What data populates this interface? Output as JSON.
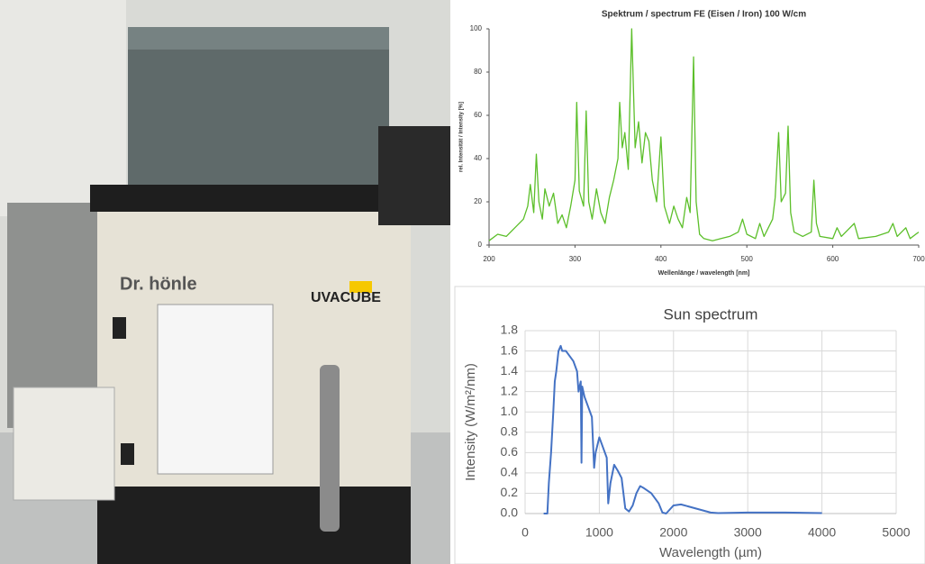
{
  "photo": {
    "brand": "Dr. hönle",
    "product": "UVACUBE"
  },
  "chart_data": [
    {
      "type": "line",
      "title": "Spektrum / spectrum FE (Eisen / Iron) 100 W/cm",
      "x_label": "Wellenlänge / wavelength [nm]",
      "y_label": "rel. Intensität / Intensity [%]",
      "xlim": [
        200,
        700
      ],
      "ylim": [
        0,
        100
      ],
      "xticks": [
        200,
        300,
        400,
        500,
        600,
        700
      ],
      "yticks": [
        0,
        20,
        40,
        60,
        80,
        100
      ],
      "grid": false,
      "series": [
        {
          "color": "#5cbf2a",
          "x": [
            200,
            210,
            220,
            230,
            240,
            245,
            248,
            252,
            255,
            258,
            262,
            265,
            270,
            275,
            280,
            285,
            290,
            295,
            300,
            302,
            305,
            310,
            313,
            316,
            320,
            325,
            330,
            335,
            340,
            345,
            350,
            352,
            355,
            358,
            362,
            366,
            370,
            374,
            378,
            382,
            386,
            390,
            395,
            400,
            404,
            410,
            415,
            420,
            425,
            430,
            434,
            438,
            441,
            445,
            450,
            460,
            470,
            480,
            490,
            495,
            500,
            510,
            515,
            520,
            530,
            533,
            537,
            540,
            545,
            548,
            551,
            555,
            565,
            575,
            578,
            581,
            585,
            600,
            605,
            610,
            625,
            630,
            650,
            665,
            670,
            675,
            685,
            690,
            700
          ],
          "values": [
            2,
            5,
            4,
            8,
            12,
            18,
            28,
            15,
            42,
            20,
            12,
            26,
            18,
            24,
            10,
            14,
            8,
            18,
            30,
            66,
            25,
            18,
            62,
            20,
            12,
            26,
            15,
            10,
            22,
            30,
            40,
            66,
            45,
            52,
            35,
            100,
            45,
            57,
            38,
            52,
            48,
            30,
            20,
            50,
            18,
            10,
            18,
            12,
            8,
            22,
            15,
            87,
            20,
            5,
            3,
            2,
            3,
            4,
            6,
            12,
            5,
            3,
            10,
            4,
            12,
            22,
            52,
            20,
            24,
            55,
            15,
            6,
            4,
            6,
            30,
            10,
            4,
            3,
            8,
            4,
            10,
            3,
            4,
            6,
            10,
            4,
            8,
            3,
            6
          ]
        }
      ]
    },
    {
      "type": "line",
      "title": "Sun spectrum",
      "x_label": "Wavelength (µm)",
      "y_label": "Intensity (W/m²/nm)",
      "xlim": [
        0,
        5000
      ],
      "ylim": [
        0,
        1.8
      ],
      "xticks": [
        0,
        1000,
        2000,
        3000,
        4000,
        5000
      ],
      "yticks": [
        {
          "value": 0,
          "label": "0.0"
        },
        0.2,
        0.4,
        0.6,
        0.8,
        {
          "value": 1,
          "label": "1.0"
        },
        1.2,
        1.4,
        1.6,
        1.8
      ],
      "grid": true,
      "series": [
        {
          "color": "#4472c4",
          "x": [
            250,
            300,
            320,
            350,
            380,
            400,
            420,
            450,
            480,
            500,
            550,
            600,
            650,
            700,
            720,
            750,
            760,
            770,
            800,
            850,
            900,
            930,
            950,
            1000,
            1050,
            1100,
            1120,
            1150,
            1200,
            1250,
            1300,
            1350,
            1400,
            1450,
            1500,
            1550,
            1600,
            1700,
            1800,
            1850,
            1900,
            1950,
            2000,
            2100,
            2200,
            2300,
            2400,
            2500,
            2600,
            3000,
            3500,
            4000
          ],
          "values": [
            0,
            0,
            0.3,
            0.6,
            1.0,
            1.3,
            1.4,
            1.6,
            1.65,
            1.6,
            1.6,
            1.55,
            1.5,
            1.4,
            1.2,
            1.3,
            0.5,
            1.25,
            1.15,
            1.05,
            0.95,
            0.45,
            0.6,
            0.75,
            0.65,
            0.55,
            0.1,
            0.3,
            0.48,
            0.42,
            0.35,
            0.05,
            0.02,
            0.08,
            0.2,
            0.27,
            0.25,
            0.2,
            0.1,
            0.01,
            0,
            0.04,
            0.08,
            0.09,
            0.07,
            0.05,
            0.03,
            0.01,
            0.005,
            0.01,
            0.01,
            0.005
          ]
        }
      ]
    }
  ]
}
